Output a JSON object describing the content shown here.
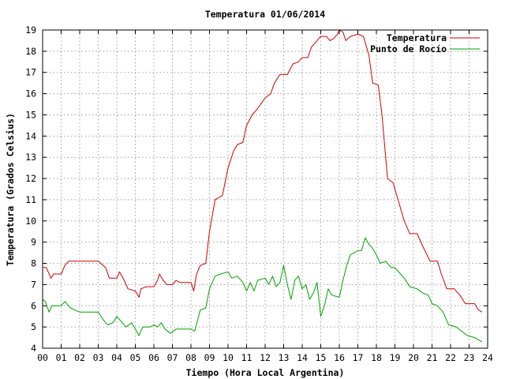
{
  "chart_data": {
    "type": "line",
    "title": "Temperatura 01/06/2014",
    "xlabel": "Tiempo (Hora Local Argentina)",
    "ylabel": "Temperatura (Grados Celsius)",
    "xlim": [
      0,
      24
    ],
    "ylim": [
      4,
      19
    ],
    "x_ticks": [
      "00",
      "01",
      "02",
      "03",
      "04",
      "05",
      "06",
      "07",
      "08",
      "09",
      "10",
      "11",
      "12",
      "13",
      "14",
      "15",
      "16",
      "17",
      "18",
      "19",
      "20",
      "21",
      "22",
      "23",
      "24"
    ],
    "y_ticks": [
      "4",
      "5",
      "6",
      "7",
      "8",
      "9",
      "10",
      "11",
      "12",
      "13",
      "14",
      "15",
      "16",
      "17",
      "18",
      "19"
    ],
    "grid": true,
    "legend_position": "top-right",
    "series": [
      {
        "name": "Temperatura",
        "color": "#d00000",
        "points": [
          [
            0,
            7.8
          ],
          [
            0.2,
            7.8
          ],
          [
            0.45,
            7.3
          ],
          [
            0.6,
            7.5
          ],
          [
            1.0,
            7.5
          ],
          [
            1.2,
            7.9
          ],
          [
            1.4,
            8.1
          ],
          [
            2.0,
            8.1
          ],
          [
            3.0,
            8.1
          ],
          [
            3.4,
            7.8
          ],
          [
            3.6,
            7.3
          ],
          [
            4.0,
            7.3
          ],
          [
            4.15,
            7.6
          ],
          [
            4.4,
            7.2
          ],
          [
            4.6,
            6.8
          ],
          [
            5.0,
            6.7
          ],
          [
            5.2,
            6.4
          ],
          [
            5.3,
            6.8
          ],
          [
            5.6,
            6.9
          ],
          [
            6.0,
            6.9
          ],
          [
            6.2,
            7.2
          ],
          [
            6.3,
            7.5
          ],
          [
            6.5,
            7.2
          ],
          [
            6.7,
            7.0
          ],
          [
            7.0,
            7.0
          ],
          [
            7.2,
            7.2
          ],
          [
            7.4,
            7.1
          ],
          [
            7.6,
            7.1
          ],
          [
            8.0,
            7.1
          ],
          [
            8.15,
            6.7
          ],
          [
            8.3,
            7.5
          ],
          [
            8.5,
            7.9
          ],
          [
            8.8,
            8.0
          ],
          [
            9.0,
            9.5
          ],
          [
            9.3,
            11.0
          ],
          [
            9.7,
            11.2
          ],
          [
            10.0,
            12.5
          ],
          [
            10.3,
            13.3
          ],
          [
            10.5,
            13.6
          ],
          [
            10.8,
            13.7
          ],
          [
            11.0,
            14.5
          ],
          [
            11.3,
            15.0
          ],
          [
            11.6,
            15.3
          ],
          [
            12.0,
            15.8
          ],
          [
            12.3,
            16.0
          ],
          [
            12.5,
            16.5
          ],
          [
            12.8,
            16.9
          ],
          [
            13.2,
            16.9
          ],
          [
            13.5,
            17.4
          ],
          [
            13.8,
            17.5
          ],
          [
            14.0,
            17.7
          ],
          [
            14.3,
            17.7
          ],
          [
            14.5,
            18.2
          ],
          [
            14.8,
            18.5
          ],
          [
            15.0,
            18.7
          ],
          [
            15.3,
            18.7
          ],
          [
            15.5,
            18.5
          ],
          [
            15.7,
            18.6
          ],
          [
            15.9,
            18.8
          ],
          [
            16.0,
            19.0
          ],
          [
            16.2,
            18.9
          ],
          [
            16.35,
            18.5
          ],
          [
            16.6,
            18.7
          ],
          [
            17.0,
            18.8
          ],
          [
            17.3,
            18.7
          ],
          [
            17.6,
            17.8
          ],
          [
            17.8,
            16.5
          ],
          [
            18.1,
            16.4
          ],
          [
            18.3,
            15.0
          ],
          [
            18.6,
            12.0
          ],
          [
            18.9,
            11.8
          ],
          [
            19.2,
            10.9
          ],
          [
            19.5,
            10.0
          ],
          [
            19.8,
            9.4
          ],
          [
            20.2,
            9.4
          ],
          [
            20.5,
            8.8
          ],
          [
            20.9,
            8.1
          ],
          [
            21.3,
            8.1
          ],
          [
            21.5,
            7.5
          ],
          [
            21.8,
            6.8
          ],
          [
            22.2,
            6.8
          ],
          [
            22.5,
            6.5
          ],
          [
            22.8,
            6.1
          ],
          [
            23.3,
            6.1
          ],
          [
            23.5,
            5.8
          ],
          [
            23.7,
            5.7
          ]
        ]
      },
      {
        "name": "Punto de Rocío",
        "color": "#00a000",
        "points": [
          [
            0,
            6.3
          ],
          [
            0.15,
            6.2
          ],
          [
            0.35,
            5.7
          ],
          [
            0.5,
            6.0
          ],
          [
            1.0,
            6.0
          ],
          [
            1.2,
            6.2
          ],
          [
            1.5,
            5.9
          ],
          [
            2.0,
            5.7
          ],
          [
            3.0,
            5.7
          ],
          [
            3.3,
            5.3
          ],
          [
            3.5,
            5.1
          ],
          [
            3.8,
            5.2
          ],
          [
            4.0,
            5.5
          ],
          [
            4.2,
            5.3
          ],
          [
            4.5,
            5.0
          ],
          [
            4.8,
            5.2
          ],
          [
            5.0,
            4.9
          ],
          [
            5.2,
            4.6
          ],
          [
            5.4,
            5.0
          ],
          [
            5.8,
            5.0
          ],
          [
            6.0,
            5.1
          ],
          [
            6.2,
            5.0
          ],
          [
            6.4,
            5.2
          ],
          [
            6.6,
            4.9
          ],
          [
            6.9,
            4.7
          ],
          [
            7.2,
            4.9
          ],
          [
            7.6,
            4.9
          ],
          [
            8.0,
            4.9
          ],
          [
            8.2,
            4.8
          ],
          [
            8.5,
            5.8
          ],
          [
            8.8,
            5.9
          ],
          [
            9.0,
            6.8
          ],
          [
            9.3,
            7.4
          ],
          [
            9.6,
            7.5
          ],
          [
            10.0,
            7.6
          ],
          [
            10.2,
            7.3
          ],
          [
            10.5,
            7.4
          ],
          [
            10.8,
            7.1
          ],
          [
            11.0,
            6.7
          ],
          [
            11.2,
            7.1
          ],
          [
            11.4,
            6.7
          ],
          [
            11.6,
            7.2
          ],
          [
            12.0,
            7.3
          ],
          [
            12.2,
            7.0
          ],
          [
            12.4,
            7.4
          ],
          [
            12.6,
            6.9
          ],
          [
            12.8,
            7.1
          ],
          [
            13.0,
            7.9
          ],
          [
            13.2,
            7.0
          ],
          [
            13.4,
            6.3
          ],
          [
            13.6,
            7.2
          ],
          [
            13.8,
            7.4
          ],
          [
            14.0,
            6.8
          ],
          [
            14.2,
            7.0
          ],
          [
            14.4,
            6.3
          ],
          [
            14.6,
            6.6
          ],
          [
            14.8,
            7.1
          ],
          [
            15.0,
            5.5
          ],
          [
            15.2,
            6.0
          ],
          [
            15.4,
            6.8
          ],
          [
            15.6,
            6.5
          ],
          [
            16.0,
            6.4
          ],
          [
            16.2,
            7.2
          ],
          [
            16.4,
            7.9
          ],
          [
            16.6,
            8.4
          ],
          [
            17.0,
            8.6
          ],
          [
            17.2,
            8.6
          ],
          [
            17.4,
            9.2
          ],
          [
            17.6,
            8.9
          ],
          [
            17.8,
            8.7
          ],
          [
            18.0,
            8.4
          ],
          [
            18.2,
            8.0
          ],
          [
            18.5,
            8.1
          ],
          [
            18.8,
            7.8
          ],
          [
            19.0,
            7.8
          ],
          [
            19.3,
            7.5
          ],
          [
            19.5,
            7.3
          ],
          [
            19.8,
            6.9
          ],
          [
            20.2,
            6.8
          ],
          [
            20.5,
            6.6
          ],
          [
            20.8,
            6.5
          ],
          [
            21.0,
            6.1
          ],
          [
            21.3,
            6.0
          ],
          [
            21.6,
            5.7
          ],
          [
            21.9,
            5.1
          ],
          [
            22.3,
            5.0
          ],
          [
            22.6,
            4.8
          ],
          [
            22.9,
            4.6
          ],
          [
            23.3,
            4.5
          ],
          [
            23.5,
            4.4
          ],
          [
            23.7,
            4.3
          ]
        ]
      }
    ]
  }
}
